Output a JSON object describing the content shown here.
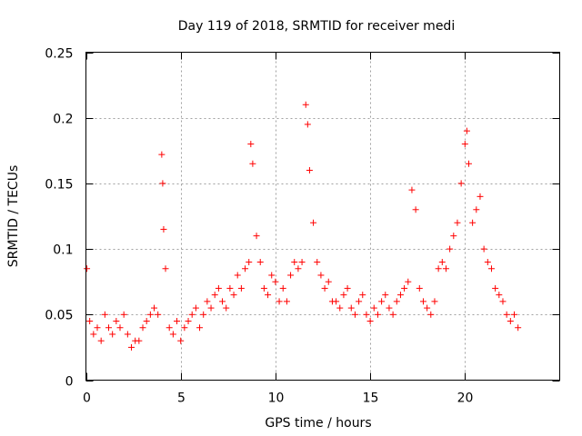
{
  "chart_data": {
    "type": "scatter",
    "title": "Day 119 of 2018, SRMTID for receiver medi",
    "xlabel": "GPS time / hours",
    "ylabel": "SRMTID / TECUs",
    "xlim": [
      0,
      25
    ],
    "ylim": [
      0,
      0.25
    ],
    "x_ticks": [
      0,
      5,
      10,
      15,
      20
    ],
    "x_tick_labels": [
      "0",
      "5",
      "10",
      "15",
      "20"
    ],
    "y_ticks": [
      0,
      0.05,
      0.1,
      0.15,
      0.2,
      0.25
    ],
    "y_tick_labels": [
      "0",
      "0.05",
      "0.1",
      "0.15",
      "0.2",
      "0.25"
    ],
    "grid": true,
    "marker": "plus",
    "series": [
      {
        "name": "SRMTID",
        "color": "#ff0000",
        "x": [
          0.05,
          0.2,
          0.4,
          0.6,
          0.8,
          1.0,
          1.2,
          1.4,
          1.6,
          1.8,
          2.0,
          2.2,
          2.4,
          2.6,
          2.8,
          3.0,
          3.2,
          3.4,
          3.6,
          3.8,
          4.0,
          4.05,
          4.1,
          4.2,
          4.4,
          4.6,
          4.8,
          5.0,
          5.2,
          5.4,
          5.6,
          5.8,
          6.0,
          6.2,
          6.4,
          6.6,
          6.8,
          7.0,
          7.2,
          7.4,
          7.6,
          7.8,
          8.0,
          8.2,
          8.4,
          8.6,
          8.7,
          8.8,
          9.0,
          9.2,
          9.4,
          9.6,
          9.8,
          10.0,
          10.2,
          10.4,
          10.6,
          10.8,
          11.0,
          11.2,
          11.4,
          11.6,
          11.7,
          11.8,
          12.0,
          12.2,
          12.4,
          12.6,
          12.8,
          13.0,
          13.2,
          13.4,
          13.6,
          13.8,
          14.0,
          14.2,
          14.4,
          14.6,
          14.8,
          15.0,
          15.2,
          15.4,
          15.6,
          15.8,
          16.0,
          16.2,
          16.4,
          16.6,
          16.8,
          17.0,
          17.2,
          17.4,
          17.6,
          17.8,
          18.0,
          18.2,
          18.4,
          18.6,
          18.8,
          19.0,
          19.2,
          19.4,
          19.6,
          19.8,
          20.0,
          20.1,
          20.2,
          20.4,
          20.6,
          20.8,
          21.0,
          21.2,
          21.4,
          21.6,
          21.8,
          22.0,
          22.2,
          22.4,
          22.6,
          22.8
        ],
        "y": [
          0.085,
          0.045,
          0.035,
          0.04,
          0.03,
          0.05,
          0.04,
          0.035,
          0.045,
          0.04,
          0.05,
          0.035,
          0.025,
          0.03,
          0.03,
          0.04,
          0.045,
          0.05,
          0.055,
          0.05,
          0.172,
          0.15,
          0.115,
          0.085,
          0.04,
          0.035,
          0.045,
          0.03,
          0.04,
          0.045,
          0.05,
          0.055,
          0.04,
          0.05,
          0.06,
          0.055,
          0.065,
          0.07,
          0.06,
          0.055,
          0.07,
          0.065,
          0.08,
          0.07,
          0.085,
          0.09,
          0.18,
          0.165,
          0.11,
          0.09,
          0.07,
          0.065,
          0.08,
          0.075,
          0.06,
          0.07,
          0.06,
          0.08,
          0.09,
          0.085,
          0.09,
          0.21,
          0.195,
          0.16,
          0.12,
          0.09,
          0.08,
          0.07,
          0.075,
          0.06,
          0.06,
          0.055,
          0.065,
          0.07,
          0.055,
          0.05,
          0.06,
          0.065,
          0.05,
          0.045,
          0.055,
          0.05,
          0.06,
          0.065,
          0.055,
          0.05,
          0.06,
          0.065,
          0.07,
          0.075,
          0.145,
          0.13,
          0.07,
          0.06,
          0.055,
          0.05,
          0.06,
          0.085,
          0.09,
          0.085,
          0.1,
          0.11,
          0.12,
          0.15,
          0.18,
          0.19,
          0.165,
          0.12,
          0.13,
          0.14,
          0.1,
          0.09,
          0.085,
          0.07,
          0.065,
          0.06,
          0.05,
          0.045,
          0.05,
          0.04
        ]
      }
    ]
  }
}
